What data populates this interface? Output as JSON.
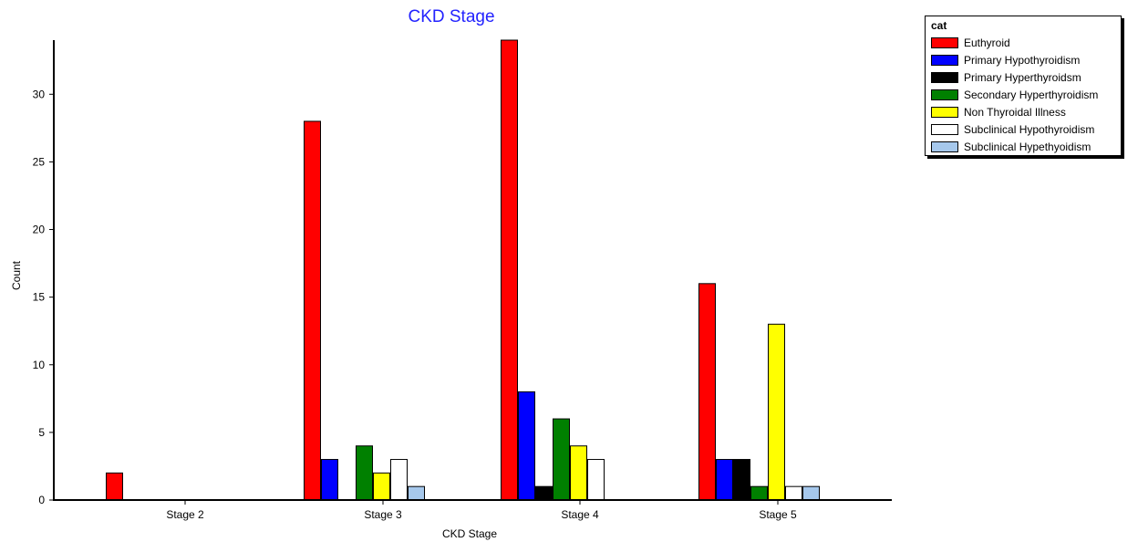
{
  "chart_data": {
    "type": "bar",
    "title": "CKD Stage",
    "xlabel": "CKD Stage",
    "ylabel": "Count",
    "categories": [
      "Stage 2",
      "Stage 3",
      "Stage 4",
      "Stage 5"
    ],
    "ylim": [
      0,
      34
    ],
    "yticks": [
      0,
      5,
      10,
      15,
      20,
      25,
      30
    ],
    "grid": false,
    "legend_position": "top-right",
    "legend_title": "cat",
    "series": [
      {
        "name": "Euthyroid",
        "color": "#ff0000",
        "values": [
          2,
          28,
          34,
          16
        ]
      },
      {
        "name": "Primary Hypothyroidism",
        "color": "#0000ff",
        "values": [
          0,
          3,
          8,
          3
        ]
      },
      {
        "name": "Primary Hyperthyroidsm",
        "color": "#000000",
        "values": [
          0,
          0,
          1,
          3
        ]
      },
      {
        "name": "Secondary Hyperthyroidism",
        "color": "#008000",
        "values": [
          0,
          4,
          6,
          1
        ]
      },
      {
        "name": "Non Thyroidal Illness",
        "color": "#ffff00",
        "values": [
          0,
          2,
          4,
          13
        ]
      },
      {
        "name": "Subclinical Hypothyroidism",
        "color": "#ffffff",
        "values": [
          0,
          3,
          3,
          1
        ]
      },
      {
        "name": "Subclinical Hypethyoidism",
        "color": "#a6c8ec",
        "values": [
          0,
          1,
          0,
          1
        ]
      }
    ]
  }
}
